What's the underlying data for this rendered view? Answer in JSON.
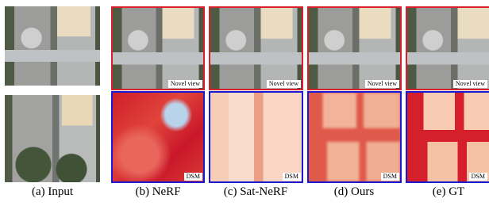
{
  "columns": [
    {
      "caption": "(a) Input"
    },
    {
      "caption": "(b) NeRF",
      "top_label": "Novel view",
      "bottom_label": "DSM"
    },
    {
      "caption": "(c) Sat-NeRF",
      "top_label": "Novel view",
      "bottom_label": "DSM"
    },
    {
      "caption": "(d) Ours",
      "top_label": "Novel view",
      "bottom_label": "DSM"
    },
    {
      "caption": "(e) GT",
      "top_label": "Novel view",
      "bottom_label": "DSM"
    }
  ]
}
